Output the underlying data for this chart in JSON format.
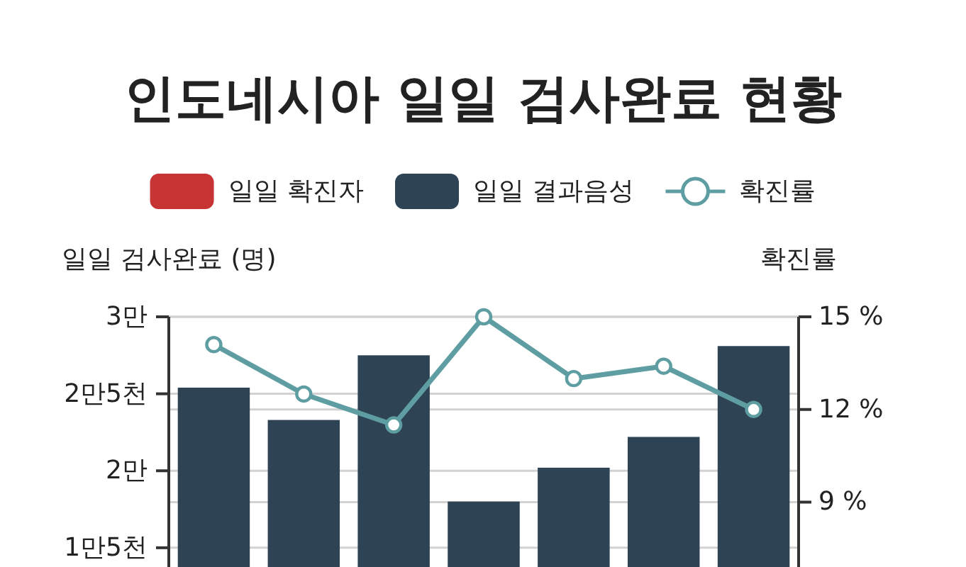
{
  "chart_data": {
    "type": "bar",
    "title": "인도네시아 일일 검사완료 현황",
    "ylabel": "일일 검사완료 (명)",
    "y2label": "확진률",
    "categories": [
      null,
      null,
      null,
      null,
      null,
      null,
      null
    ],
    "series": [
      {
        "name": "일일 확진자",
        "color": "#c73434",
        "values": [
          null,
          null,
          null,
          null,
          null,
          null,
          null
        ]
      },
      {
        "name": "일일 결과음성",
        "color": "#2e4354",
        "values": [
          2.54,
          2.33,
          2.75,
          1.8,
          2.02,
          2.22,
          2.81
        ]
      },
      {
        "name": "확진률",
        "type": "line",
        "axis": "y2",
        "color": "#5e9ea3",
        "values": [
          14.1,
          12.5,
          11.5,
          15.0,
          13.0,
          13.4,
          12.0
        ]
      }
    ],
    "ylim": [
      1.375,
      3
    ],
    "yticks": [
      {
        "value": 1.5,
        "label": "1만5천"
      },
      {
        "value": 2,
        "label": "2만"
      },
      {
        "value": 2.5,
        "label": "2만5천"
      },
      {
        "value": 3,
        "label": "3만"
      }
    ],
    "y2lim": [
      6.9,
      15
    ],
    "y2ticks": [
      {
        "value": 9,
        "label": "9 %"
      },
      {
        "value": 12,
        "label": "12 %"
      },
      {
        "value": 15,
        "label": "15 %"
      }
    ],
    "grid": true,
    "legend": "top",
    "marker": "circle"
  }
}
